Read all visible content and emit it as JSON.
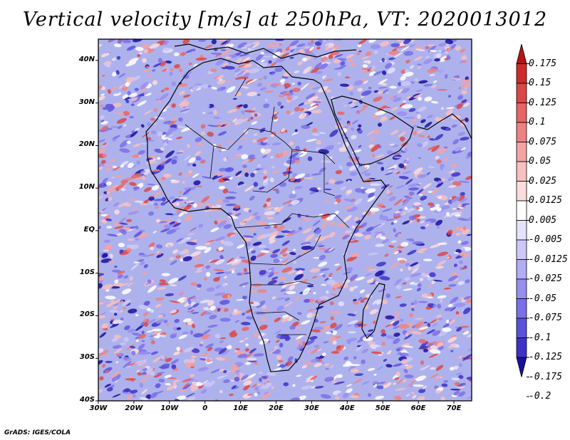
{
  "title": "Vertical velocity [m/s] at 250hPa, VT: 2020013012",
  "footer": "GrADS: IGES/COLA",
  "map": {
    "lon_range": [
      -30,
      75
    ],
    "lat_range": [
      -40,
      45
    ],
    "lat_labels": [
      "40N",
      "30N",
      "20N",
      "10N",
      "EQ",
      "10S",
      "20S",
      "30S",
      "40S"
    ],
    "lat_values": [
      40,
      30,
      20,
      10,
      0,
      -10,
      -20,
      -30,
      -40
    ],
    "lon_labels": [
      "30W",
      "20W",
      "10W",
      "0",
      "10E",
      "20E",
      "30E",
      "40E",
      "50E",
      "60E",
      "70E"
    ],
    "lon_values": [
      -30,
      -20,
      -10,
      0,
      10,
      20,
      30,
      40,
      50,
      60,
      70
    ]
  },
  "colorbar": {
    "colors": [
      "#1a10a0",
      "#3c32c8",
      "#5a52dc",
      "#7a70e8",
      "#968ef0",
      "#b2acf4",
      "#cdc8f8",
      "#e4e2fc",
      "#ffffff",
      "#fcdcdc",
      "#f8c0c0",
      "#f4a2a2",
      "#ee8282",
      "#e66464",
      "#dc4646",
      "#ce2a2a",
      "#b81414"
    ],
    "labels": [
      "0.175",
      "0.15",
      "0.125",
      "0.1",
      "0.075",
      "0.05",
      "0.025",
      "0.0125",
      "0.005",
      "-0.005",
      "-0.0125",
      "-0.025",
      "-0.05",
      "-0.075",
      "-0.1",
      "-0.125",
      "-0.175",
      "-0.2"
    ],
    "label_values": [
      0.175,
      0.15,
      0.125,
      0.1,
      0.075,
      0.05,
      0.025,
      0.0125,
      0.005,
      -0.005,
      -0.0125,
      -0.025,
      -0.05,
      -0.075,
      -0.1,
      -0.125,
      -0.175,
      -0.2
    ]
  }
}
